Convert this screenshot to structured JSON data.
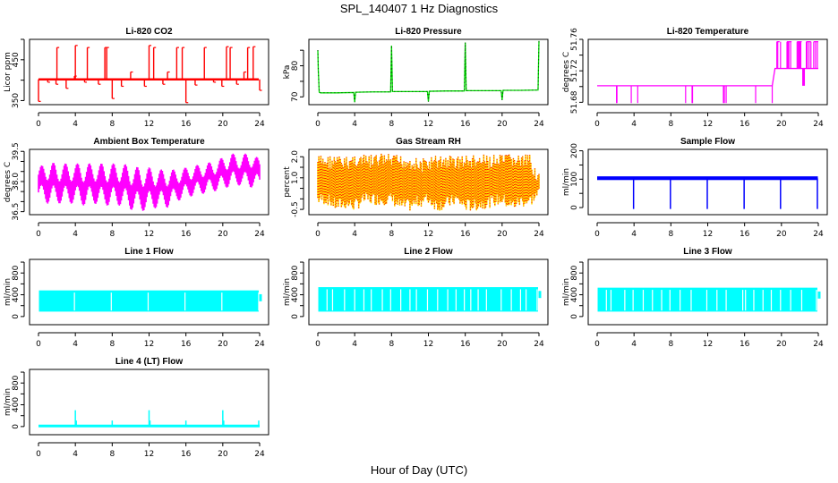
{
  "figure": {
    "title": "SPL_140407  1 Hz Diagnostics",
    "xlabel": "Hour of Day (UTC)"
  },
  "chart_data": [
    {
      "type": "line",
      "title": "Li-820 CO2",
      "ylabel": "Licor ppm",
      "color": "#ff0000",
      "xlim": [
        0,
        24
      ],
      "ylim": [
        340,
        500
      ],
      "xticks": [
        0,
        4,
        8,
        12,
        16,
        20,
        24
      ],
      "yticks": [
        350,
        400,
        450,
        500
      ],
      "ytick_labels": [
        "350",
        "",
        "450",
        ""
      ],
      "baseline": 402,
      "x": [
        0,
        0.5,
        1,
        1.5,
        1.9,
        2,
        2.5,
        3,
        3.3,
        3.9,
        4,
        4.5,
        5,
        5.3,
        6,
        6.5,
        7,
        7.2,
        7.4,
        7.8,
        8,
        8.5,
        9,
        9.5,
        10,
        10.5,
        11,
        11.5,
        12,
        12.3,
        12.5,
        13,
        13.5,
        14,
        14.4,
        14.7,
        15,
        15.6,
        16,
        16.5,
        17,
        17.6,
        18,
        18.5,
        19,
        19.5,
        19.9,
        20.4,
        20.8,
        21,
        21.5,
        22,
        22.3,
        22.7,
        23.3,
        23.6,
        24
      ],
      "y": [
        348,
        402,
        395,
        402,
        390,
        480,
        402,
        380,
        402,
        410,
        485,
        402,
        395,
        480,
        402,
        390,
        402,
        480,
        480,
        402,
        355,
        402,
        385,
        402,
        420,
        402,
        402,
        385,
        485,
        402,
        480,
        402,
        390,
        420,
        402,
        402,
        480,
        480,
        345,
        402,
        388,
        402,
        480,
        402,
        395,
        402,
        385,
        482,
        480,
        402,
        390,
        402,
        420,
        480,
        482,
        402,
        375
      ]
    },
    {
      "type": "line",
      "title": "Li-820 Pressure",
      "ylabel": "kPa",
      "color": "#00dd00",
      "xlim": [
        0,
        24
      ],
      "ylim": [
        67.5,
        88.5
      ],
      "xticks": [
        0,
        4,
        8,
        12,
        16,
        20,
        24
      ],
      "yticks": [
        70,
        75,
        80,
        85
      ],
      "ytick_labels": [
        "70",
        "",
        "80",
        ""
      ],
      "x": [
        0,
        0.05,
        0.15,
        0.3,
        2,
        3.9,
        4,
        4.1,
        6,
        7.9,
        8,
        8.1,
        10,
        11.9,
        12,
        12.1,
        14,
        15.9,
        16,
        16.1,
        18,
        19.9,
        20,
        20.1,
        22,
        23.9,
        24
      ],
      "y": [
        85,
        78.5,
        71.5,
        71.3,
        71.3,
        71.4,
        68.3,
        71.5,
        71.6,
        71.6,
        86.5,
        71.7,
        71.7,
        71.7,
        68.5,
        71.8,
        71.9,
        71.9,
        87.5,
        72.0,
        72.0,
        72.0,
        69.0,
        72.1,
        72.1,
        72.2,
        88
      ]
    },
    {
      "type": "line",
      "title": "Li-820 Temperature",
      "ylabel": "degrees C",
      "color": "#ff00ff",
      "xlim": [
        0,
        24
      ],
      "ylim": [
        51.677,
        51.76
      ],
      "xticks": [
        0,
        4,
        8,
        12,
        16,
        20,
        24
      ],
      "yticks": [
        51.68,
        51.7,
        51.72,
        51.74,
        51.76
      ],
      "ytick_labels": [
        "51.68",
        "",
        "51.72",
        "",
        "51.76"
      ],
      "x": [
        0,
        2.1,
        3.7,
        4.4,
        9.6,
        10.3,
        13.7,
        14.0,
        17.2,
        19.0,
        19.3,
        19.6,
        20.4,
        21.0,
        21.8,
        22.6,
        23.2,
        24
      ],
      "y": [
        51.701,
        51.679,
        51.679,
        51.679,
        51.679,
        51.679,
        51.679,
        51.679,
        51.679,
        51.701,
        51.723,
        51.757,
        51.757,
        51.723,
        51.757,
        51.701,
        51.757,
        51.723
      ]
    },
    {
      "type": "area",
      "title": "Ambient Box Temperature",
      "ylabel": "degrees C",
      "color": "#ff00ff",
      "xlim": [
        0,
        24
      ],
      "ylim": [
        36.35,
        39.6
      ],
      "xticks": [
        0,
        4,
        8,
        12,
        16,
        20,
        24
      ],
      "yticks": [
        36.5,
        37.0,
        37.5,
        38.0,
        38.5,
        39.0,
        39.5
      ],
      "ytick_labels": [
        "36.5",
        "",
        "",
        "38.0",
        "",
        "",
        "39.5"
      ],
      "x": [
        0,
        1,
        2,
        3,
        4,
        5,
        6,
        7,
        8,
        9,
        10,
        11,
        12,
        13,
        14,
        15,
        16,
        17,
        18,
        19,
        20,
        21,
        22,
        23,
        24
      ],
      "upper": [
        38.7,
        39.0,
        38.9,
        38.9,
        38.9,
        38.9,
        38.9,
        38.9,
        38.9,
        38.9,
        38.8,
        38.7,
        38.7,
        38.6,
        38.6,
        38.6,
        38.7,
        38.8,
        38.9,
        39.0,
        39.2,
        39.4,
        39.3,
        39.5,
        39.1
      ],
      "lower": [
        37.1,
        36.9,
        36.9,
        36.9,
        36.9,
        36.8,
        36.9,
        36.8,
        36.8,
        36.8,
        36.6,
        36.5,
        36.6,
        36.7,
        36.7,
        37.0,
        37.2,
        37.3,
        37.4,
        37.5,
        37.6,
        37.8,
        37.8,
        37.7,
        37.7
      ]
    },
    {
      "type": "area",
      "title": "Gas Stream RH",
      "ylabel": "percent",
      "color": "#ffd700",
      "color2": "#ff0000",
      "xlim": [
        0,
        24
      ],
      "ylim": [
        -0.75,
        2.35
      ],
      "xticks": [
        0,
        4,
        8,
        12,
        16,
        20,
        24
      ],
      "yticks": [
        -0.5,
        0.0,
        0.5,
        1.0,
        1.5,
        2.0
      ],
      "ytick_labels": [
        "-0.5",
        "",
        "",
        "1.0",
        "",
        "2.0"
      ],
      "x": [
        0,
        1,
        2,
        3,
        4,
        5,
        6,
        7,
        8,
        9,
        10,
        11,
        12,
        13,
        14,
        15,
        16,
        17,
        18,
        19,
        20,
        21,
        22,
        23,
        24
      ],
      "upper": [
        2.1,
        2.1,
        2.1,
        2.0,
        2.2,
        2.1,
        2.1,
        2.2,
        2.1,
        2.1,
        2.1,
        1.9,
        2.0,
        2.1,
        2.1,
        2.1,
        2.1,
        2.1,
        2.1,
        2.1,
        2.1,
        2.2,
        2.1,
        2.1,
        1.3
      ],
      "lower": [
        -0.3,
        -0.3,
        -0.6,
        -0.5,
        -0.6,
        -0.3,
        -0.3,
        -0.3,
        -0.3,
        -0.6,
        -0.6,
        -0.4,
        -0.3,
        -0.6,
        -0.5,
        -0.3,
        -0.6,
        -0.6,
        -0.5,
        -0.4,
        -0.3,
        -0.6,
        -0.4,
        -0.4,
        0.0
      ]
    },
    {
      "type": "line",
      "title": "Sample Flow",
      "ylabel": "ml/min",
      "color": "#0000ff",
      "xlim": [
        0,
        24
      ],
      "ylim": [
        -25,
        205
      ],
      "xticks": [
        0,
        4,
        8,
        12,
        16,
        20,
        24
      ],
      "yticks": [
        0,
        50,
        100,
        150,
        200
      ],
      "ytick_labels": [
        "0",
        "",
        "100",
        "",
        "200"
      ],
      "baseline": 103,
      "dips_x": [
        3.95,
        7.95,
        11.95,
        15.95,
        19.9,
        23.9
      ],
      "dips_y": -5
    },
    {
      "type": "area",
      "title": "Line 1 Flow",
      "ylabel": "ml/min",
      "color": "#00ffff",
      "xlim": [
        0,
        24
      ],
      "ylim": [
        -150,
        1050
      ],
      "xticks": [
        0,
        4,
        8,
        12,
        16,
        20,
        24
      ],
      "yticks": [
        0,
        200,
        400,
        600,
        800,
        1000
      ],
      "ytick_labels": [
        "0",
        "",
        "400",
        "",
        "800",
        ""
      ],
      "upper": 480,
      "lower": 90,
      "gaps_x": [
        3.9,
        7.9,
        11.9,
        15.9,
        19.9,
        23.9
      ]
    },
    {
      "type": "area",
      "title": "Line 2 Flow",
      "ylabel": "ml/min",
      "color": "#00ffff",
      "xlim": [
        0,
        24
      ],
      "ylim": [
        -150,
        1050
      ],
      "xticks": [
        0,
        4,
        8,
        12,
        16,
        20,
        24
      ],
      "yticks": [
        0,
        200,
        400,
        600,
        800,
        1000
      ],
      "ytick_labels": [
        "0",
        "",
        "400",
        "",
        "800",
        ""
      ],
      "upper": 540,
      "lower": 90,
      "gaps_x": [
        1.0,
        1.6,
        2.9,
        4.0,
        5.0,
        5.8,
        7.0,
        7.9,
        9.0,
        10.0,
        10.7,
        11.9,
        13.0,
        14.1,
        15.0,
        15.9,
        16.6,
        17.4,
        18.3,
        19.9,
        21.0,
        22.0,
        22.6,
        23.8
      ]
    },
    {
      "type": "area",
      "title": "Line 3 Flow",
      "ylabel": "ml/min",
      "color": "#00ffff",
      "xlim": [
        0,
        24
      ],
      "ylim": [
        -150,
        1050
      ],
      "xticks": [
        0,
        4,
        8,
        12,
        16,
        20,
        24
      ],
      "yticks": [
        0,
        200,
        400,
        600,
        800,
        1000
      ],
      "ytick_labels": [
        "0",
        "",
        "400",
        "",
        "800",
        ""
      ],
      "upper": 530,
      "lower": 90,
      "gaps_x": [
        1.0,
        1.5,
        3.0,
        3.9,
        5.0,
        6.0,
        7.0,
        7.9,
        9.0,
        10.2,
        11.9,
        13.0,
        14.0,
        15.8,
        16.1,
        17.0,
        18.0,
        18.9,
        19.9,
        21.0,
        22.2,
        23.8
      ]
    },
    {
      "type": "line",
      "title": "Line 4 (LT) Flow",
      "ylabel": "ml/min",
      "color": "#00ffff",
      "xlim": [
        0,
        24
      ],
      "ylim": [
        -150,
        1050
      ],
      "xticks": [
        0,
        4,
        8,
        12,
        16,
        20,
        24
      ],
      "yticks": [
        0,
        200,
        400,
        600,
        800,
        1000
      ],
      "ytick_labels": [
        "0",
        "",
        "400",
        "",
        "800",
        ""
      ],
      "baseline": 10,
      "spikes_x": [
        4.0,
        4.1,
        8.0,
        12.0,
        12.1,
        16.0,
        20.0,
        20.1,
        23.9
      ],
      "spikes_y": [
        300,
        110,
        110,
        300,
        110,
        110,
        300,
        110,
        110
      ]
    }
  ]
}
